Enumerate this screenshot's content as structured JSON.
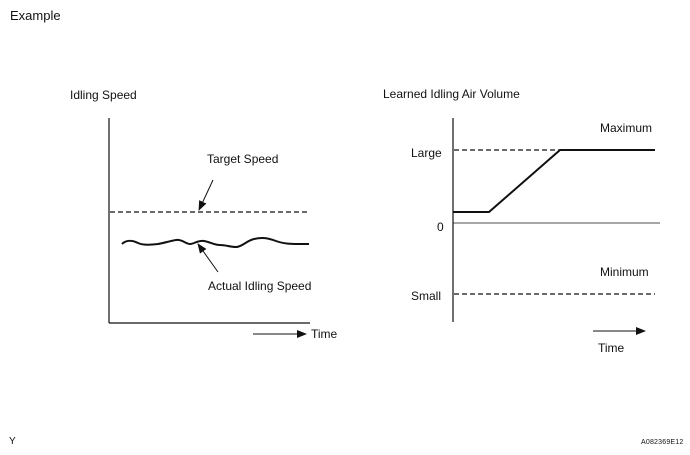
{
  "header": {
    "label": "Example"
  },
  "left_chart": {
    "title": "Idling Speed",
    "target_label": "Target Speed",
    "actual_label": "Actual Idling Speed",
    "time_label": "Time"
  },
  "right_chart": {
    "title": "Learned Idling Air Volume",
    "maximum_label": "Maximum",
    "minimum_label": "Minimum",
    "large_label": "Large",
    "zero_label": "0",
    "small_label": "Small",
    "time_label": "Time"
  },
  "footer": {
    "left_mark": "Y",
    "figure_code": "A082369E12"
  }
}
